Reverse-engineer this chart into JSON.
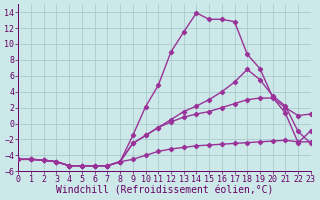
{
  "xlabel": "Windchill (Refroidissement éolien,°C)",
  "bg_color": "#cde8e8",
  "grid_color": "#aacccc",
  "line_color": "#993399",
  "xlim": [
    0,
    23
  ],
  "ylim": [
    -6,
    15
  ],
  "xticks": [
    0,
    1,
    2,
    3,
    4,
    5,
    6,
    7,
    8,
    9,
    10,
    11,
    12,
    13,
    14,
    15,
    16,
    17,
    18,
    19,
    20,
    21,
    22,
    23
  ],
  "yticks": [
    -6,
    -4,
    -2,
    0,
    2,
    4,
    6,
    8,
    10,
    12,
    14
  ],
  "x": [
    0,
    1,
    2,
    3,
    4,
    5,
    6,
    7,
    8,
    9,
    10,
    11,
    12,
    13,
    14,
    15,
    16,
    17,
    18,
    19,
    20,
    21,
    22,
    23
  ],
  "line1": [
    -4.5,
    -4.5,
    -4.6,
    -4.8,
    -5.3,
    -5.3,
    -5.3,
    -5.3,
    -4.8,
    -1.5,
    2.1,
    4.8,
    9.0,
    11.5,
    13.9,
    13.1,
    13.1,
    12.8,
    8.7,
    6.9,
    3.3,
    1.3,
    -2.4,
    -0.9
  ],
  "line2": [
    -4.5,
    -4.5,
    -4.6,
    -4.8,
    -5.3,
    -5.3,
    -5.3,
    -5.3,
    -4.8,
    -2.5,
    -1.5,
    -0.5,
    0.5,
    1.5,
    2.2,
    3.0,
    4.0,
    5.2,
    6.8,
    5.5,
    3.5,
    2.2,
    -1.0,
    -2.5
  ],
  "line3": [
    -4.5,
    -4.5,
    -4.6,
    -4.8,
    -5.3,
    -5.3,
    -5.3,
    -5.3,
    -4.8,
    -2.5,
    -1.5,
    -0.5,
    0.2,
    0.8,
    1.2,
    1.5,
    2.0,
    2.5,
    3.0,
    3.2,
    3.2,
    2.0,
    1.0,
    1.2
  ],
  "line4": [
    -4.5,
    -4.5,
    -4.6,
    -4.8,
    -5.3,
    -5.3,
    -5.3,
    -5.3,
    -4.8,
    -4.5,
    -4.0,
    -3.5,
    -3.2,
    -3.0,
    -2.8,
    -2.7,
    -2.6,
    -2.5,
    -2.4,
    -2.3,
    -2.2,
    -2.1,
    -2.3,
    -2.3
  ],
  "font_color": "#660066",
  "tick_font_size": 6.0,
  "xlabel_font_size": 7.0,
  "linewidth": 1.0,
  "marker_size": 2.2
}
